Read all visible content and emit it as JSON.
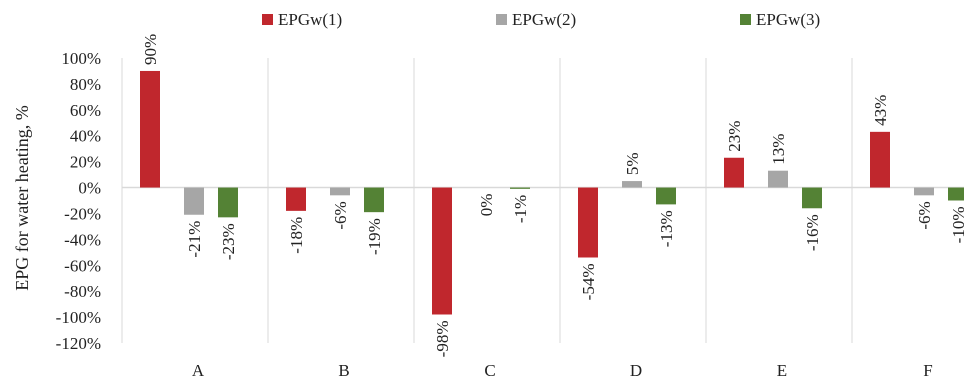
{
  "chart_data": {
    "type": "bar",
    "title": "",
    "xlabel": "",
    "ylabel": "EPG for water heating, %",
    "categories": [
      "A",
      "B",
      "C",
      "D",
      "E",
      "F"
    ],
    "ylim": [
      -120,
      100
    ],
    "yticks": [
      100,
      80,
      60,
      40,
      20,
      0,
      -20,
      -40,
      -60,
      -80,
      -100,
      -120
    ],
    "ytick_labels": [
      "100%",
      "80%",
      "60%",
      "40%",
      "20%",
      "0%",
      "-20%",
      "-40%",
      "-60%",
      "-80%",
      "-100%",
      "-120%"
    ],
    "legend_position": "top",
    "grid": "vertical category separators",
    "series": [
      {
        "name": "EPGw(1)",
        "color": "#c0272d",
        "values": [
          90,
          -18,
          -98,
          -54,
          23,
          43
        ],
        "labels": [
          "90%",
          "-18%",
          "-98%",
          "-54%",
          "23%",
          "43%"
        ]
      },
      {
        "name": "EPGw(2)",
        "color": "#a6a6a6",
        "values": [
          -21,
          -6,
          0,
          5,
          13,
          -6
        ],
        "labels": [
          "-21%",
          "-6%",
          "0%",
          "5%",
          "13%",
          "-6%"
        ]
      },
      {
        "name": "EPGw(3)",
        "color": "#548235",
        "values": [
          -23,
          -19,
          -1,
          -13,
          -16,
          -10
        ],
        "labels": [
          "-23%",
          "-19%",
          "-1%",
          "-13%",
          "-16%",
          "-10%"
        ]
      }
    ]
  }
}
